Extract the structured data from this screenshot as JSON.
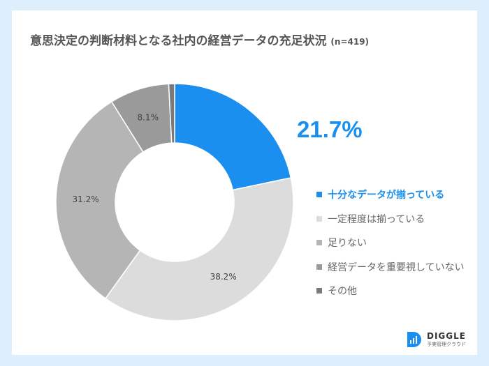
{
  "title": "意思決定の判断材料となる社内の経営データの充足状況",
  "n_label": "(n=419)",
  "chart_data": {
    "type": "pie",
    "donut": true,
    "title": "意思決定の判断材料となる社内の経営データの充足状況 (n=419)",
    "categories": [
      "十分なデータが揃っている",
      "一定程度は揃っている",
      "足りない",
      "経営データを重要視していない",
      "その他"
    ],
    "values": [
      21.7,
      38.2,
      31.2,
      8.1,
      0.8
    ],
    "data_labels": [
      "21.7%",
      "38.2%",
      "31.2%",
      "8.1%",
      ""
    ],
    "colors": [
      "#1a8fef",
      "#dcdcdc",
      "#b5b5b5",
      "#9a9a9a",
      "#7a7a7a"
    ],
    "highlight_label": "21.7%",
    "legend_position": "right"
  },
  "logo": {
    "name": "DIGGLE",
    "tagline": "予実管理クラウド"
  }
}
